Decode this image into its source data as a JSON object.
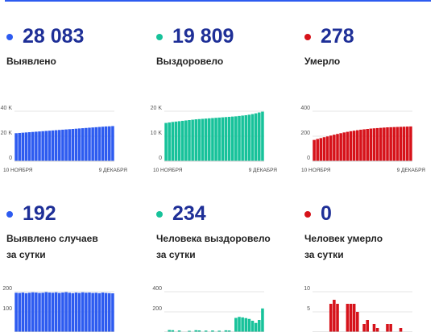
{
  "colors": {
    "blue": "#2d5bf0",
    "teal": "#17c29a",
    "red": "#d6121a",
    "value_text": "#1e2f97",
    "top_line": "#2d5bf0"
  },
  "panels": [
    {
      "id": "detected-total",
      "value": "28 083",
      "label": [
        "Выявлено"
      ],
      "color_key": "blue"
    },
    {
      "id": "recovered-total",
      "value": "19 809",
      "label": [
        "Выздоровело"
      ],
      "color_key": "teal"
    },
    {
      "id": "died-total",
      "value": "278",
      "label": [
        "Умерло"
      ],
      "color_key": "red"
    },
    {
      "id": "detected-daily",
      "value": "192",
      "label": [
        "Выявлено случаев",
        "за сутки"
      ],
      "color_key": "blue"
    },
    {
      "id": "recovered-daily",
      "value": "234",
      "label": [
        "Человека выздоровело",
        "за сутки"
      ],
      "color_key": "teal"
    },
    {
      "id": "died-daily",
      "value": "0",
      "label": [
        "Человек умерло",
        "за сутки"
      ],
      "color_key": "red"
    }
  ],
  "chart_data": [
    {
      "type": "bar",
      "color_key": "blue",
      "title": "Выявлено",
      "x_start_label": "10 НОЯБРЯ",
      "x_end_label": "9 ДЕКАБРЯ",
      "ylim": [
        0,
        40000
      ],
      "yticks": [
        0,
        20000,
        40000
      ],
      "ytick_labels": [
        "0",
        "20 K",
        "40 K"
      ],
      "values": [
        22400,
        22600,
        22800,
        23000,
        23200,
        23400,
        23600,
        23800,
        24000,
        24200,
        24400,
        24600,
        24800,
        25000,
        25200,
        25400,
        25600,
        25800,
        26000,
        26200,
        26400,
        26600,
        26800,
        27000,
        27200,
        27400,
        27600,
        27800,
        27900,
        28083
      ]
    },
    {
      "type": "bar",
      "color_key": "teal",
      "title": "Выздоровело",
      "x_start_label": "10 НОЯБРЯ",
      "x_end_label": "9 ДЕКАБРЯ",
      "ylim": [
        0,
        20000
      ],
      "yticks": [
        0,
        10000,
        20000
      ],
      "ytick_labels": [
        "0",
        "10 K",
        "20 K"
      ],
      "values": [
        15300,
        15500,
        15700,
        15850,
        16000,
        16150,
        16300,
        16450,
        16600,
        16750,
        16850,
        16950,
        17050,
        17150,
        17250,
        17350,
        17450,
        17550,
        17650,
        17750,
        17850,
        17950,
        18100,
        18250,
        18400,
        18600,
        18850,
        19150,
        19500,
        19809
      ]
    },
    {
      "type": "bar",
      "color_key": "red",
      "title": "Умерло",
      "x_start_label": "10 НОЯБРЯ",
      "x_end_label": "9 ДЕКАБРЯ",
      "ylim": [
        0,
        400
      ],
      "yticks": [
        0,
        200,
        400
      ],
      "ytick_labels": [
        "0",
        "200",
        "400"
      ],
      "values": [
        170,
        178,
        185,
        192,
        198,
        205,
        212,
        218,
        224,
        230,
        235,
        240,
        244,
        248,
        252,
        255,
        258,
        261,
        263,
        265,
        267,
        269,
        271,
        272,
        273,
        274,
        275,
        276,
        277,
        278
      ]
    },
    {
      "type": "bar",
      "color_key": "blue",
      "title": "Выявлено случаев за сутки",
      "x_start_label": "",
      "x_end_label": "",
      "ylim": [
        0,
        240
      ],
      "yticks": [
        100,
        200
      ],
      "ytick_labels": [
        "100",
        "200"
      ],
      "values": [
        195,
        194,
        196,
        193,
        195,
        197,
        196,
        194,
        195,
        198,
        196,
        195,
        197,
        194,
        196,
        198,
        195,
        193,
        196,
        194,
        197,
        195,
        196,
        194,
        195,
        193,
        196,
        194,
        193,
        192
      ]
    },
    {
      "type": "bar",
      "color_key": "teal",
      "title": "Человека выздоровело за сутки",
      "x_start_label": "",
      "x_end_label": "",
      "ylim": [
        0,
        480
      ],
      "yticks": [
        200,
        400
      ],
      "ytick_labels": [
        "200",
        "400"
      ],
      "values": [
        0,
        20,
        18,
        0,
        15,
        0,
        0,
        12,
        0,
        18,
        16,
        0,
        14,
        0,
        15,
        0,
        13,
        0,
        17,
        15,
        0,
        140,
        150,
        145,
        138,
        130,
        112,
        90,
        120,
        234
      ]
    },
    {
      "type": "bar",
      "color_key": "red",
      "title": "Человек умерло за сутки",
      "x_start_label": "",
      "x_end_label": "",
      "ylim": [
        0,
        12
      ],
      "yticks": [
        5,
        10
      ],
      "ytick_labels": [
        "5",
        "10"
      ],
      "values": [
        0,
        0,
        0,
        0,
        0,
        7,
        8,
        7,
        0,
        0,
        7,
        7,
        7,
        5,
        0,
        2,
        3,
        0,
        2,
        1,
        0,
        0,
        2,
        2,
        0,
        0,
        1,
        0,
        0,
        0
      ]
    }
  ]
}
